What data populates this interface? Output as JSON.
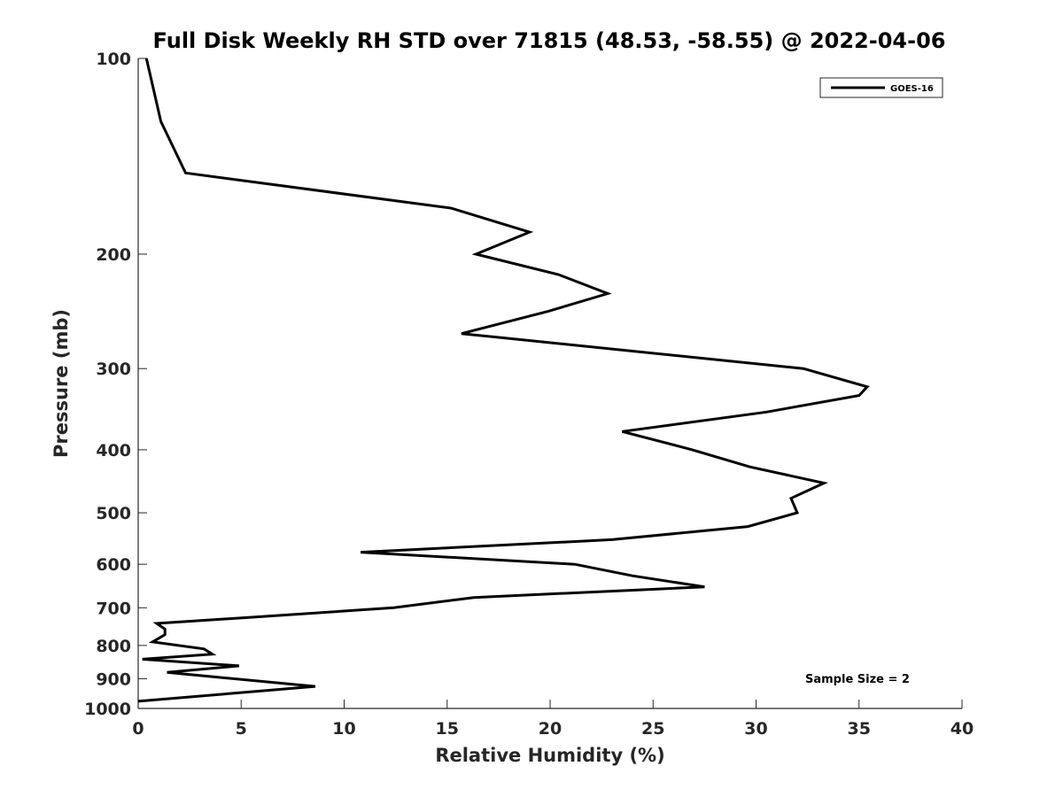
{
  "chart_data": {
    "type": "line",
    "title": "Full Disk Weekly RH STD over 71815 (48.53, -58.55) @ 2022-04-06",
    "xlabel": "Relative Humidity (%)",
    "ylabel": "Pressure (mb)",
    "xlim": [
      0,
      40
    ],
    "ylim": [
      100,
      1000
    ],
    "y_scale": "log",
    "y_reversed": true,
    "x_ticks": [
      0,
      5,
      10,
      15,
      20,
      25,
      30,
      35,
      40
    ],
    "y_ticks": [
      100,
      200,
      300,
      400,
      500,
      600,
      700,
      800,
      900,
      1000
    ],
    "grid": false,
    "legend_position": "top-right",
    "series": [
      {
        "name": "GOES-16",
        "color": "#000000",
        "points": [
          [
            0.4,
            100
          ],
          [
            1.1,
            125
          ],
          [
            2.3,
            150
          ],
          [
            15.2,
            170
          ],
          [
            19.0,
            185
          ],
          [
            16.4,
            200
          ],
          [
            20.4,
            215
          ],
          [
            22.8,
            230
          ],
          [
            19.9,
            245
          ],
          [
            15.7,
            265
          ],
          [
            32.3,
            300
          ],
          [
            35.4,
            320
          ],
          [
            35.0,
            330
          ],
          [
            30.5,
            350
          ],
          [
            23.5,
            375
          ],
          [
            26.9,
            400
          ],
          [
            29.7,
            425
          ],
          [
            33.3,
            450
          ],
          [
            31.7,
            475
          ],
          [
            32.0,
            500
          ],
          [
            29.6,
            525
          ],
          [
            23.0,
            550
          ],
          [
            10.8,
            575
          ],
          [
            21.2,
            600
          ],
          [
            24.0,
            625
          ],
          [
            27.5,
            650
          ],
          [
            16.3,
            675
          ],
          [
            12.4,
            700
          ],
          [
            5.2,
            725
          ],
          [
            0.9,
            740
          ],
          [
            1.3,
            755
          ],
          [
            1.3,
            770
          ],
          [
            0.7,
            790
          ],
          [
            3.2,
            810
          ],
          [
            3.6,
            825
          ],
          [
            0.2,
            840
          ],
          [
            4.9,
            860
          ],
          [
            1.4,
            880
          ],
          [
            8.6,
            925
          ],
          [
            0.0,
            975
          ]
        ]
      }
    ],
    "annotation": "Sample Size = 2"
  }
}
